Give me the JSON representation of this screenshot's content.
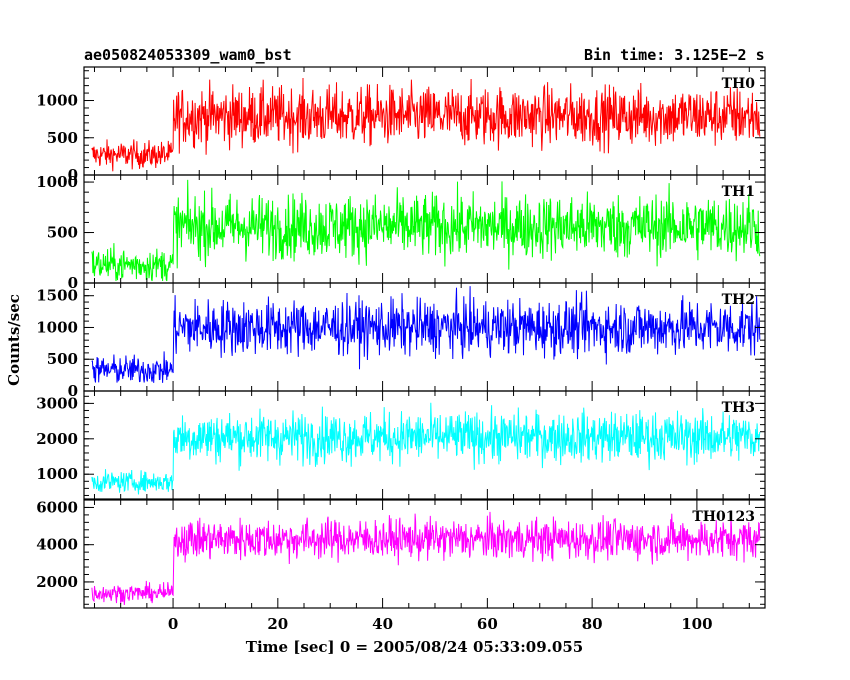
{
  "header": {
    "left": "ae050824053309_wam0_bst",
    "right": "Bin time: 3.125E−2 s"
  },
  "chart_data": {
    "type": "line",
    "title": "ae050824053309_wam0_bst",
    "subtitle": "Bin time: 3.125E−2 s",
    "xlabel": "Time [sec] 0 = 2005/08/24 05:33:09.055",
    "ylabel": "Counts/sec",
    "xlim": [
      -17,
      113
    ],
    "x_ticks": [
      0,
      20,
      40,
      60,
      80,
      100
    ],
    "burst_start": 0,
    "x_range": [
      -15.5,
      112
    ],
    "panels": [
      {
        "name": "TH0",
        "color": "#ff0000",
        "ylim": [
          0,
          1450
        ],
        "y_ticks": [
          0,
          500,
          1000
        ],
        "pre_burst": {
          "mean": 270,
          "min": 50,
          "max": 620
        },
        "burst": {
          "mean": 790,
          "min": 200,
          "max": 1450
        }
      },
      {
        "name": "TH1",
        "color": "#00ff00",
        "ylim": [
          0,
          1070
        ],
        "y_ticks": [
          0,
          500,
          1000
        ],
        "pre_burst": {
          "mean": 180,
          "min": 20,
          "max": 540
        },
        "burst": {
          "mean": 560,
          "min": 80,
          "max": 1070
        }
      },
      {
        "name": "TH2",
        "color": "#0000ff",
        "ylim": [
          0,
          1700
        ],
        "y_ticks": [
          0,
          500,
          1000,
          1500
        ],
        "pre_burst": {
          "mean": 330,
          "min": 60,
          "max": 760
        },
        "burst": {
          "mean": 1000,
          "min": 330,
          "max": 1700
        }
      },
      {
        "name": "TH3",
        "color": "#00ffff",
        "ylim": [
          300,
          3350
        ],
        "y_ticks": [
          1000,
          2000,
          3000
        ],
        "pre_burst": {
          "mean": 780,
          "min": 430,
          "max": 1350
        },
        "burst": {
          "mean": 2050,
          "min": 1100,
          "max": 3330
        }
      },
      {
        "name": "TH0123",
        "color": "#ff00ff",
        "ylim": [
          600,
          6400
        ],
        "y_ticks": [
          2000,
          4000,
          6000
        ],
        "pre_burst": {
          "mean": 1400,
          "min": 700,
          "max": 2200
        },
        "burst": {
          "mean": 4300,
          "min": 2900,
          "max": 6300
        }
      }
    ]
  }
}
